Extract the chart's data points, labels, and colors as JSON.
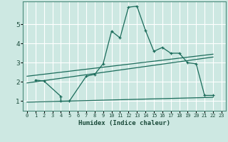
{
  "xlabel": "Humidex (Indice chaleur)",
  "background_color": "#cde8e2",
  "grid_color": "#ffffff",
  "line_color": "#1a6b5a",
  "xlim": [
    -0.5,
    23.5
  ],
  "ylim": [
    0.5,
    6.2
  ],
  "yticks": [
    1,
    2,
    3,
    4,
    5
  ],
  "xticks": [
    0,
    1,
    2,
    3,
    4,
    5,
    6,
    7,
    8,
    9,
    10,
    11,
    12,
    13,
    14,
    15,
    16,
    17,
    18,
    19,
    20,
    21,
    22,
    23
  ],
  "series1_x": [
    1,
    2,
    4,
    4,
    5,
    7,
    8,
    9,
    10,
    11,
    12,
    13,
    14,
    15,
    16,
    17,
    18,
    19,
    20,
    21,
    22
  ],
  "series1_y": [
    2.1,
    2.05,
    1.25,
    1.0,
    1.0,
    2.3,
    2.4,
    2.95,
    4.65,
    4.3,
    5.9,
    5.95,
    4.7,
    3.6,
    3.8,
    3.5,
    3.5,
    3.0,
    2.95,
    1.3,
    1.3
  ],
  "series2_x": [
    0,
    22
  ],
  "series2_y": [
    1.95,
    3.3
  ],
  "series3_x": [
    0,
    22
  ],
  "series3_y": [
    2.3,
    3.45
  ],
  "series4_x": [
    0,
    22
  ],
  "series4_y": [
    0.95,
    1.2
  ]
}
